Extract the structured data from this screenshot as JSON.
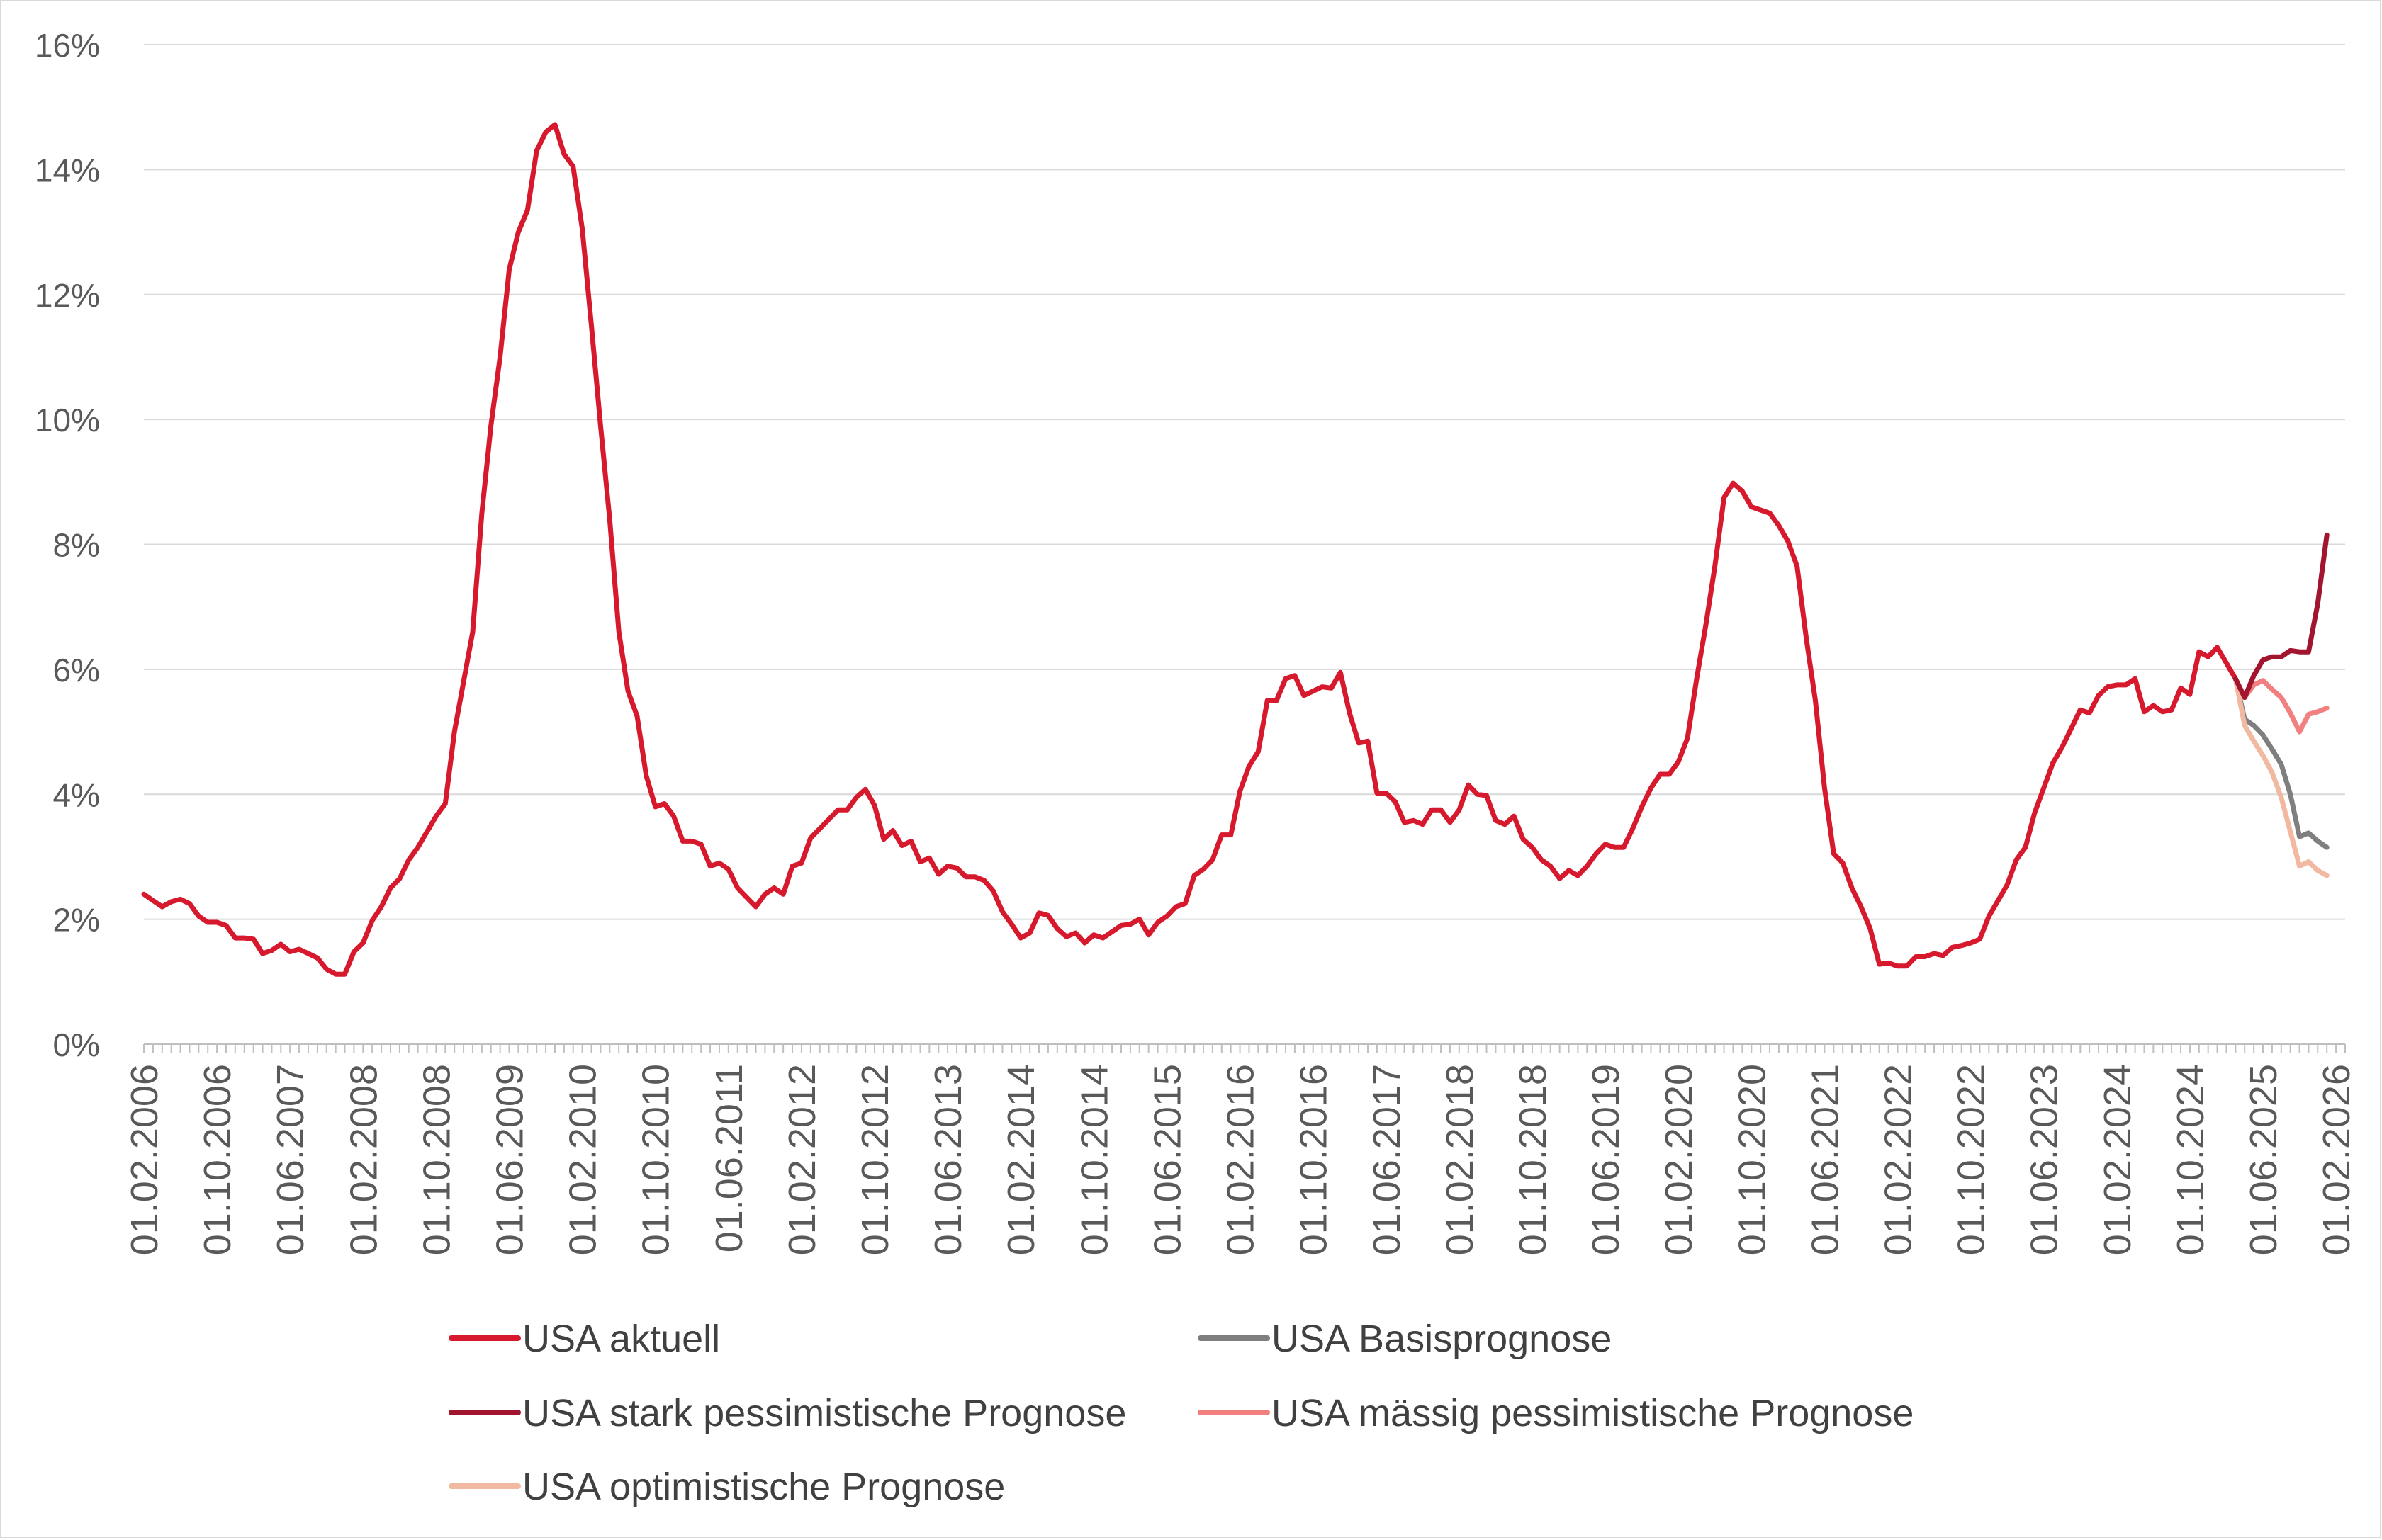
{
  "chart_data": {
    "type": "line",
    "title": "",
    "xlabel": "",
    "ylabel": "",
    "x_start": "2006-02",
    "x_end": "2026-03",
    "ylim": [
      0,
      16
    ],
    "y_ticks": [
      0,
      2,
      4,
      6,
      8,
      10,
      12,
      14,
      16
    ],
    "y_tick_labels": [
      "0%",
      "2%",
      "4%",
      "6%",
      "8%",
      "10%",
      "12%",
      "14%",
      "16%"
    ],
    "x_tick_labels": [
      "01.02.2006",
      "01.10.2006",
      "01.06.2007",
      "01.02.2008",
      "01.10.2008",
      "01.06.2009",
      "01.02.2010",
      "01.10.2010",
      "01.06.2011",
      "01.02.2012",
      "01.10.2012",
      "01.06.2013",
      "01.02.2014",
      "01.10.2014",
      "01.06.2015",
      "01.02.2016",
      "01.10.2016",
      "01.06.2017",
      "01.02.2018",
      "01.10.2018",
      "01.06.2019",
      "01.02.2020",
      "01.10.2020",
      "01.06.2021",
      "01.02.2022",
      "01.10.2022",
      "01.06.2023",
      "01.02.2024",
      "01.10.2024",
      "01.06.2025",
      "01.02.2026"
    ],
    "gridlines": "horizontal",
    "legend_position": "bottom",
    "series": [
      {
        "name": "USA aktuell",
        "color": "#d7192d",
        "points": [
          [
            "2006-02",
            2.4
          ],
          [
            "2006-03",
            2.3
          ],
          [
            "2006-04",
            2.2
          ],
          [
            "2006-05",
            2.28
          ],
          [
            "2006-06",
            2.32
          ],
          [
            "2006-07",
            2.25
          ],
          [
            "2006-08",
            2.05
          ],
          [
            "2006-09",
            1.95
          ],
          [
            "2006-10",
            1.95
          ],
          [
            "2006-11",
            1.9
          ],
          [
            "2006-12",
            1.7
          ],
          [
            "2007-01",
            1.7
          ],
          [
            "2007-02",
            1.68
          ],
          [
            "2007-03",
            1.45
          ],
          [
            "2007-04",
            1.5
          ],
          [
            "2007-05",
            1.6
          ],
          [
            "2007-06",
            1.48
          ],
          [
            "2007-07",
            1.52
          ],
          [
            "2007-08",
            1.45
          ],
          [
            "2007-09",
            1.38
          ],
          [
            "2007-10",
            1.2
          ],
          [
            "2007-11",
            1.12
          ],
          [
            "2007-12",
            1.12
          ],
          [
            "2008-01",
            1.48
          ],
          [
            "2008-02",
            1.62
          ],
          [
            "2008-03",
            1.98
          ],
          [
            "2008-04",
            2.2
          ],
          [
            "2008-05",
            2.5
          ],
          [
            "2008-06",
            2.65
          ],
          [
            "2008-07",
            2.95
          ],
          [
            "2008-08",
            3.15
          ],
          [
            "2008-09",
            3.4
          ],
          [
            "2008-10",
            3.65
          ],
          [
            "2008-11",
            3.85
          ],
          [
            "2008-12",
            5.0
          ],
          [
            "2009-01",
            5.8
          ],
          [
            "2009-02",
            6.6
          ],
          [
            "2009-03",
            8.5
          ],
          [
            "2009-04",
            9.9
          ],
          [
            "2009-05",
            11.0
          ],
          [
            "2009-06",
            12.4
          ],
          [
            "2009-07",
            13.0
          ],
          [
            "2009-08",
            13.35
          ],
          [
            "2009-09",
            14.3
          ],
          [
            "2009-10",
            14.6
          ],
          [
            "2009-11",
            14.72
          ],
          [
            "2009-12",
            14.25
          ],
          [
            "2010-01",
            14.05
          ],
          [
            "2010-02",
            13.05
          ],
          [
            "2010-03",
            11.5
          ],
          [
            "2010-04",
            9.9
          ],
          [
            "2010-05",
            8.4
          ],
          [
            "2010-06",
            6.6
          ],
          [
            "2010-07",
            5.65
          ],
          [
            "2010-08",
            5.25
          ],
          [
            "2010-09",
            4.3
          ],
          [
            "2010-10",
            3.8
          ],
          [
            "2010-11",
            3.85
          ],
          [
            "2010-12",
            3.65
          ],
          [
            "2011-01",
            3.25
          ],
          [
            "2011-02",
            3.25
          ],
          [
            "2011-03",
            3.2
          ],
          [
            "2011-04",
            2.85
          ],
          [
            "2011-05",
            2.9
          ],
          [
            "2011-06",
            2.8
          ],
          [
            "2011-07",
            2.5
          ],
          [
            "2011-08",
            2.35
          ],
          [
            "2011-09",
            2.2
          ],
          [
            "2011-10",
            2.4
          ],
          [
            "2011-11",
            2.5
          ],
          [
            "2011-12",
            2.4
          ],
          [
            "2012-01",
            2.85
          ],
          [
            "2012-02",
            2.9
          ],
          [
            "2012-03",
            3.3
          ],
          [
            "2012-04",
            3.45
          ],
          [
            "2012-05",
            3.6
          ],
          [
            "2012-06",
            3.75
          ],
          [
            "2012-07",
            3.75
          ],
          [
            "2012-08",
            3.95
          ],
          [
            "2012-09",
            4.08
          ],
          [
            "2012-10",
            3.82
          ],
          [
            "2012-11",
            3.28
          ],
          [
            "2012-12",
            3.42
          ],
          [
            "2013-01",
            3.18
          ],
          [
            "2013-02",
            3.25
          ],
          [
            "2013-03",
            2.92
          ],
          [
            "2013-04",
            2.98
          ],
          [
            "2013-05",
            2.72
          ],
          [
            "2013-06",
            2.85
          ],
          [
            "2013-07",
            2.82
          ],
          [
            "2013-08",
            2.68
          ],
          [
            "2013-09",
            2.68
          ],
          [
            "2013-10",
            2.62
          ],
          [
            "2013-11",
            2.45
          ],
          [
            "2013-12",
            2.12
          ],
          [
            "2014-01",
            1.92
          ],
          [
            "2014-02",
            1.7
          ],
          [
            "2014-03",
            1.78
          ],
          [
            "2014-04",
            2.1
          ],
          [
            "2014-05",
            2.06
          ],
          [
            "2014-06",
            1.85
          ],
          [
            "2014-07",
            1.72
          ],
          [
            "2014-08",
            1.78
          ],
          [
            "2014-09",
            1.62
          ],
          [
            "2014-10",
            1.75
          ],
          [
            "2014-11",
            1.7
          ],
          [
            "2014-12",
            1.8
          ],
          [
            "2015-01",
            1.9
          ],
          [
            "2015-02",
            1.92
          ],
          [
            "2015-03",
            2.0
          ],
          [
            "2015-04",
            1.75
          ],
          [
            "2015-05",
            1.95
          ],
          [
            "2015-06",
            2.05
          ],
          [
            "2015-07",
            2.2
          ],
          [
            "2015-08",
            2.25
          ],
          [
            "2015-09",
            2.7
          ],
          [
            "2015-10",
            2.8
          ],
          [
            "2015-11",
            2.95
          ],
          [
            "2015-12",
            3.35
          ],
          [
            "2016-01",
            3.35
          ],
          [
            "2016-02",
            4.05
          ],
          [
            "2016-03",
            4.45
          ],
          [
            "2016-04",
            4.68
          ],
          [
            "2016-05",
            5.5
          ],
          [
            "2016-06",
            5.5
          ],
          [
            "2016-07",
            5.85
          ],
          [
            "2016-08",
            5.9
          ],
          [
            "2016-09",
            5.58
          ],
          [
            "2016-10",
            5.65
          ],
          [
            "2016-11",
            5.72
          ],
          [
            "2016-12",
            5.7
          ],
          [
            "2017-01",
            5.95
          ],
          [
            "2017-02",
            5.3
          ],
          [
            "2017-03",
            4.82
          ],
          [
            "2017-04",
            4.85
          ],
          [
            "2017-05",
            4.02
          ],
          [
            "2017-06",
            4.02
          ],
          [
            "2017-07",
            3.88
          ],
          [
            "2017-08",
            3.55
          ],
          [
            "2017-09",
            3.58
          ],
          [
            "2017-10",
            3.52
          ],
          [
            "2017-11",
            3.75
          ],
          [
            "2017-12",
            3.75
          ],
          [
            "2018-01",
            3.55
          ],
          [
            "2018-02",
            3.75
          ],
          [
            "2018-03",
            4.15
          ],
          [
            "2018-04",
            4.0
          ],
          [
            "2018-05",
            3.98
          ],
          [
            "2018-06",
            3.58
          ],
          [
            "2018-07",
            3.52
          ],
          [
            "2018-08",
            3.65
          ],
          [
            "2018-09",
            3.28
          ],
          [
            "2018-10",
            3.15
          ],
          [
            "2018-11",
            2.95
          ],
          [
            "2018-12",
            2.85
          ],
          [
            "2019-01",
            2.65
          ],
          [
            "2019-02",
            2.78
          ],
          [
            "2019-03",
            2.7
          ],
          [
            "2019-04",
            2.85
          ],
          [
            "2019-05",
            3.05
          ],
          [
            "2019-06",
            3.2
          ],
          [
            "2019-07",
            3.15
          ],
          [
            "2019-08",
            3.15
          ],
          [
            "2019-09",
            3.45
          ],
          [
            "2019-10",
            3.8
          ],
          [
            "2019-11",
            4.1
          ],
          [
            "2019-12",
            4.32
          ],
          [
            "2020-01",
            4.32
          ],
          [
            "2020-02",
            4.52
          ],
          [
            "2020-03",
            4.9
          ],
          [
            "2020-04",
            5.85
          ],
          [
            "2020-05",
            6.7
          ],
          [
            "2020-06",
            7.65
          ],
          [
            "2020-07",
            8.75
          ],
          [
            "2020-08",
            8.98
          ],
          [
            "2020-09",
            8.85
          ],
          [
            "2020-10",
            8.6
          ],
          [
            "2020-11",
            8.55
          ],
          [
            "2020-12",
            8.5
          ],
          [
            "2021-01",
            8.3
          ],
          [
            "2021-02",
            8.05
          ],
          [
            "2021-03",
            7.65
          ],
          [
            "2021-04",
            6.5
          ],
          [
            "2021-05",
            5.5
          ],
          [
            "2021-06",
            4.1
          ],
          [
            "2021-07",
            3.05
          ],
          [
            "2021-08",
            2.9
          ],
          [
            "2021-09",
            2.5
          ],
          [
            "2021-10",
            2.2
          ],
          [
            "2021-11",
            1.85
          ],
          [
            "2021-12",
            1.28
          ],
          [
            "2022-01",
            1.3
          ],
          [
            "2022-02",
            1.25
          ],
          [
            "2022-03",
            1.25
          ],
          [
            "2022-04",
            1.4
          ],
          [
            "2022-05",
            1.4
          ],
          [
            "2022-06",
            1.45
          ],
          [
            "2022-07",
            1.42
          ],
          [
            "2022-08",
            1.55
          ],
          [
            "2022-09",
            1.58
          ],
          [
            "2022-10",
            1.62
          ],
          [
            "2022-11",
            1.68
          ],
          [
            "2022-12",
            2.05
          ],
          [
            "2023-01",
            2.3
          ],
          [
            "2023-02",
            2.55
          ],
          [
            "2023-03",
            2.95
          ],
          [
            "2023-04",
            3.15
          ],
          [
            "2023-05",
            3.7
          ],
          [
            "2023-06",
            4.1
          ],
          [
            "2023-07",
            4.5
          ],
          [
            "2023-08",
            4.75
          ],
          [
            "2023-09",
            5.05
          ],
          [
            "2023-10",
            5.35
          ],
          [
            "2023-11",
            5.3
          ],
          [
            "2023-12",
            5.58
          ],
          [
            "2024-01",
            5.72
          ],
          [
            "2024-02",
            5.75
          ],
          [
            "2024-03",
            5.75
          ],
          [
            "2024-04",
            5.85
          ],
          [
            "2024-05",
            5.32
          ],
          [
            "2024-06",
            5.42
          ],
          [
            "2024-07",
            5.32
          ],
          [
            "2024-08",
            5.35
          ],
          [
            "2024-09",
            5.7
          ],
          [
            "2024-10",
            5.6
          ],
          [
            "2024-11",
            6.28
          ],
          [
            "2024-12",
            6.2
          ],
          [
            "2025-01",
            6.35
          ],
          [
            "2025-02",
            6.1
          ],
          [
            "2025-03",
            5.85
          ]
        ]
      },
      {
        "name": "USA Basisprognose",
        "color": "#7f7f7f",
        "points": [
          [
            "2025-03",
            5.85
          ],
          [
            "2025-04",
            5.2
          ],
          [
            "2025-05",
            5.1
          ],
          [
            "2025-06",
            4.95
          ],
          [
            "2025-07",
            4.72
          ],
          [
            "2025-08",
            4.48
          ],
          [
            "2025-09",
            4.0
          ],
          [
            "2025-10",
            3.32
          ],
          [
            "2025-11",
            3.38
          ],
          [
            "2025-12",
            3.25
          ],
          [
            "2026-01",
            3.15
          ]
        ]
      },
      {
        "name": "USA stark pessimistische Prognose",
        "color": "#a1162e",
        "points": [
          [
            "2025-03",
            5.85
          ],
          [
            "2025-04",
            5.55
          ],
          [
            "2025-05",
            5.9
          ],
          [
            "2025-06",
            6.15
          ],
          [
            "2025-07",
            6.2
          ],
          [
            "2025-08",
            6.2
          ],
          [
            "2025-09",
            6.3
          ],
          [
            "2025-10",
            6.28
          ],
          [
            "2025-11",
            6.28
          ],
          [
            "2025-12",
            7.05
          ],
          [
            "2026-01",
            8.15
          ]
        ]
      },
      {
        "name": "USA mässig pessimistische Prognose",
        "color": "#f28080",
        "points": [
          [
            "2025-03",
            5.85
          ],
          [
            "2025-04",
            5.55
          ],
          [
            "2025-05",
            5.75
          ],
          [
            "2025-06",
            5.82
          ],
          [
            "2025-07",
            5.68
          ],
          [
            "2025-08",
            5.55
          ],
          [
            "2025-09",
            5.3
          ],
          [
            "2025-10",
            5.0
          ],
          [
            "2025-11",
            5.28
          ],
          [
            "2025-12",
            5.32
          ],
          [
            "2026-01",
            5.38
          ]
        ]
      },
      {
        "name": "USA optimistische Prognose",
        "color": "#f2b9a2",
        "points": [
          [
            "2025-03",
            5.85
          ],
          [
            "2025-04",
            5.1
          ],
          [
            "2025-05",
            4.85
          ],
          [
            "2025-06",
            4.62
          ],
          [
            "2025-07",
            4.35
          ],
          [
            "2025-08",
            3.95
          ],
          [
            "2025-09",
            3.4
          ],
          [
            "2025-10",
            2.85
          ],
          [
            "2025-11",
            2.92
          ],
          [
            "2025-12",
            2.78
          ],
          [
            "2026-01",
            2.7
          ]
        ]
      }
    ]
  }
}
